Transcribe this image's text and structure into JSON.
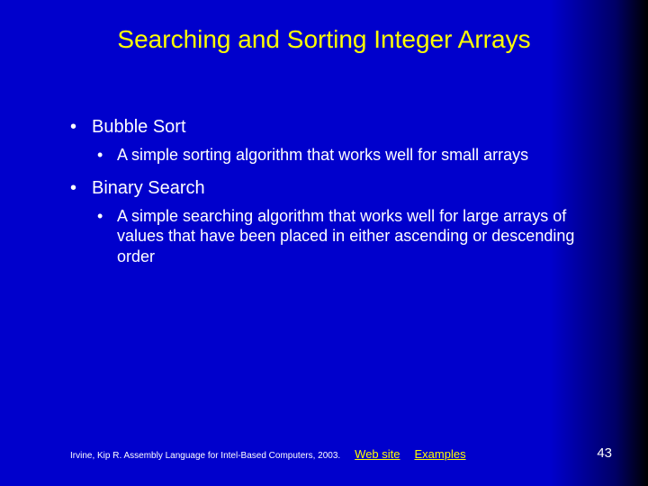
{
  "title": "Searching and Sorting Integer Arrays",
  "bullets": [
    {
      "label": "Bubble Sort",
      "sub": "A simple sorting algorithm that works well for small arrays"
    },
    {
      "label": "Binary Search",
      "sub": "A simple searching algorithm that works well for large arrays of values that have been placed in either ascending or descending order"
    }
  ],
  "footer": {
    "citation": "Irvine, Kip R. Assembly Language for Intel-Based Computers, 2003.",
    "link1": "Web site",
    "link2": "Examples"
  },
  "page_number": "43",
  "colors": {
    "title_color": "#ffff00",
    "text_color": "#ffffff",
    "link_color": "#ffff00",
    "bg_main": "#0000cc",
    "bg_edge": "#000000"
  }
}
